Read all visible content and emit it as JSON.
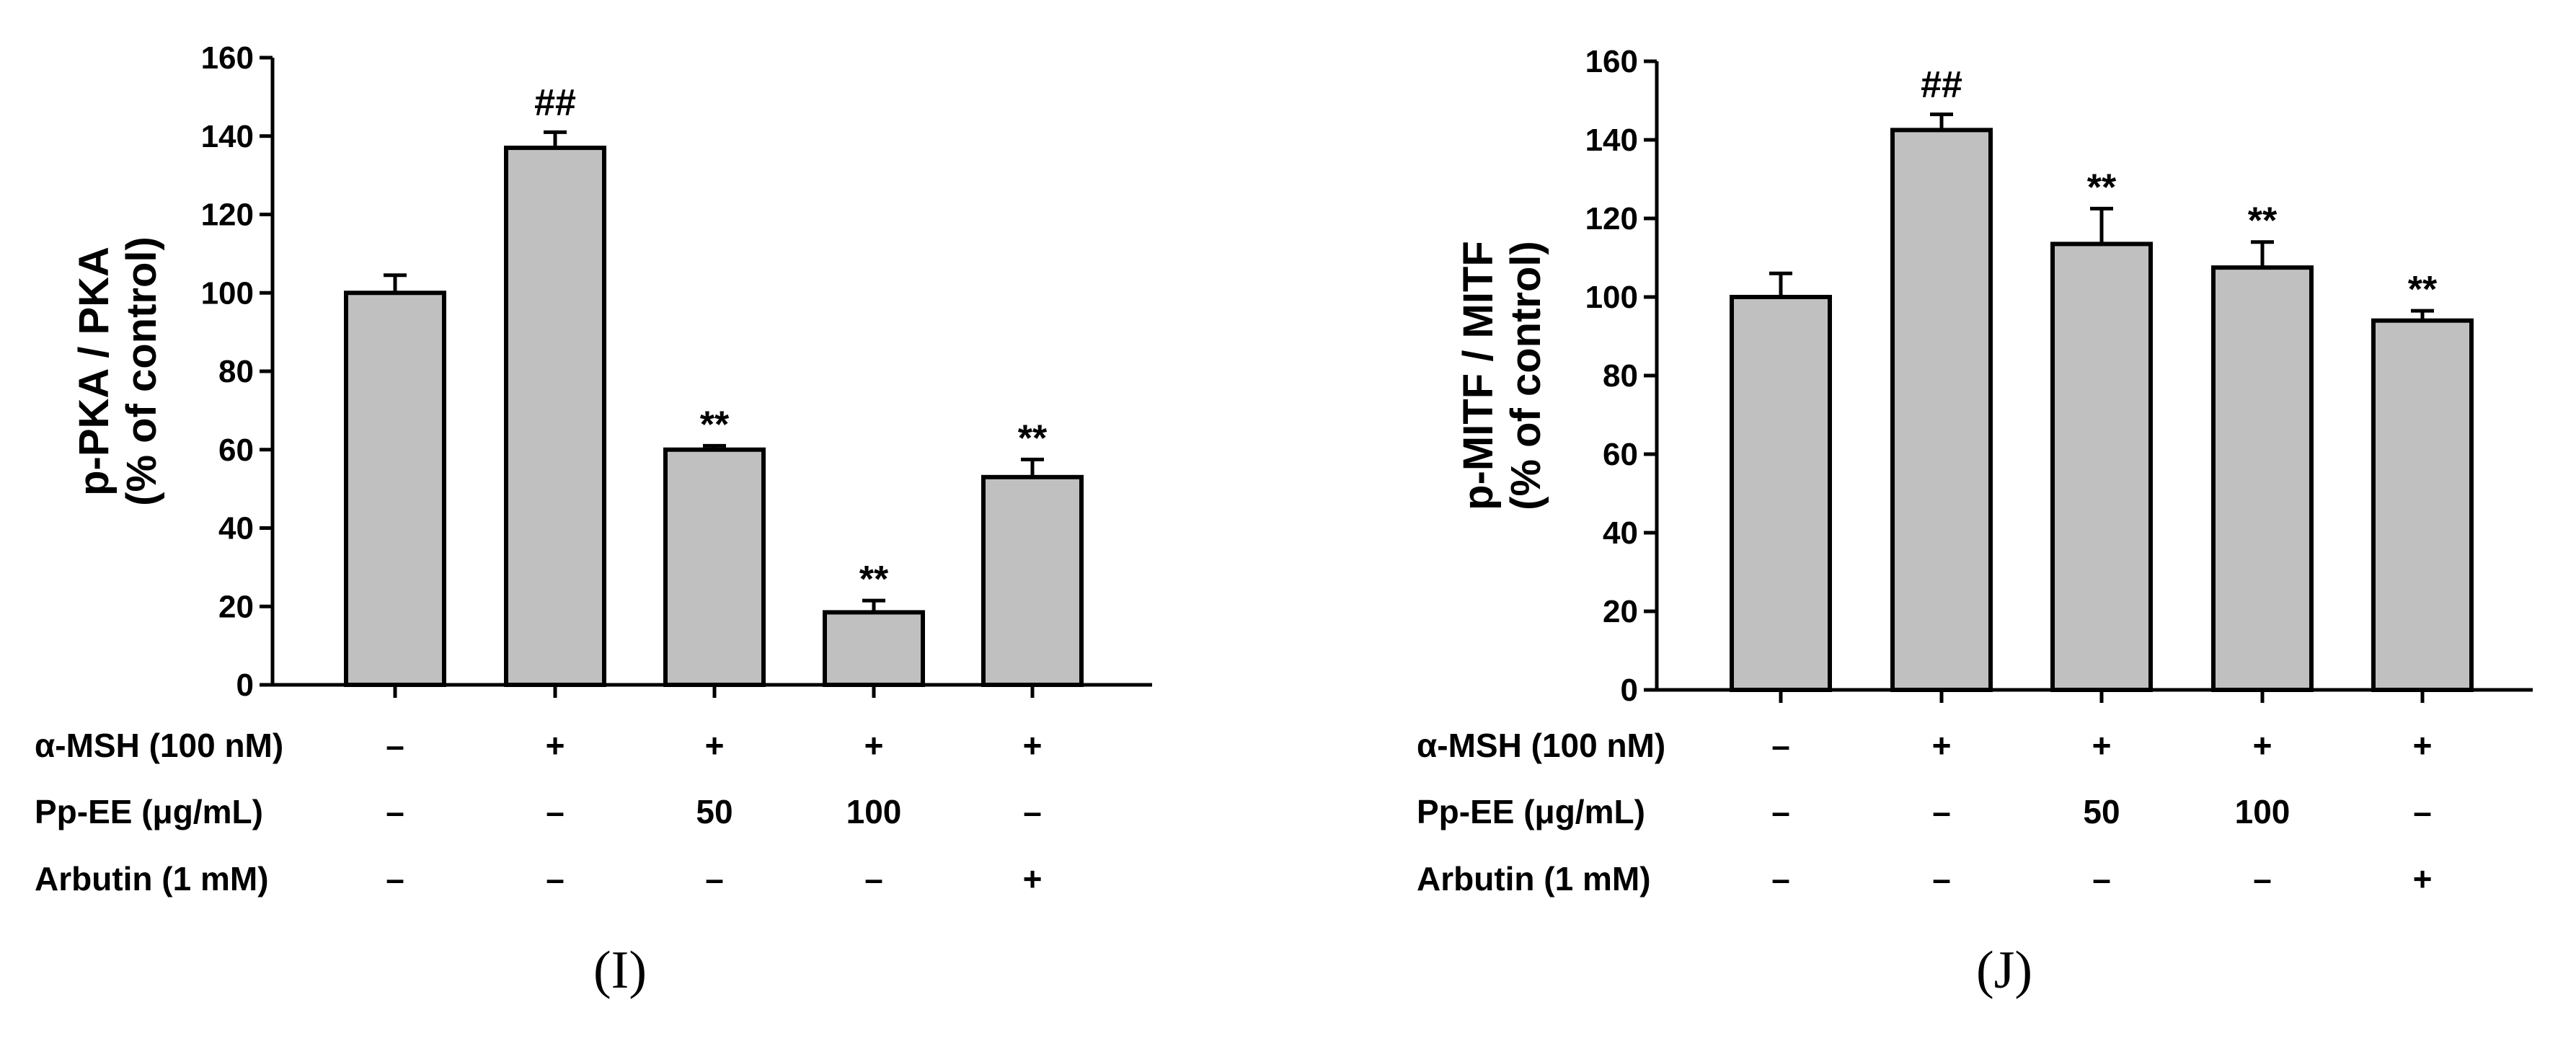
{
  "chart_data": [
    {
      "type": "bar",
      "panel": "(I)",
      "ylabel_line1": "p-PKA / PKA",
      "ylabel_line2": "(% of control)",
      "ylim": [
        0,
        160
      ],
      "yticks": [
        0,
        20,
        40,
        60,
        80,
        100,
        120,
        140,
        160
      ],
      "values": [
        100,
        137,
        60,
        18.5,
        53
      ],
      "errors": [
        4.5,
        4,
        1,
        3,
        4.5
      ],
      "significance": [
        "",
        "##",
        "**",
        "**",
        "**"
      ],
      "conditions": [
        {
          "label": "α-MSH (100 nM)",
          "cells": [
            "–",
            "+",
            "+",
            "+",
            "+"
          ]
        },
        {
          "label": "Pp-EE (μg/mL)",
          "cells": [
            "–",
            "–",
            "50",
            "100",
            "–"
          ]
        },
        {
          "label": "Arbutin (1 mM)",
          "cells": [
            "–",
            "–",
            "–",
            "–",
            "+"
          ]
        }
      ]
    },
    {
      "type": "bar",
      "panel": "(J)",
      "ylabel_line1": "p-MITF / MITF",
      "ylabel_line2": "(% of control)",
      "ylim": [
        0,
        160
      ],
      "yticks": [
        0,
        20,
        40,
        60,
        80,
        100,
        120,
        140,
        160
      ],
      "values": [
        100,
        142.5,
        113.5,
        107.5,
        94
      ],
      "errors": [
        6,
        4,
        9,
        6.5,
        2.5
      ],
      "significance": [
        "",
        "##",
        "**",
        "**",
        "**"
      ],
      "conditions": [
        {
          "label": "α-MSH (100 nM)",
          "cells": [
            "–",
            "+",
            "+",
            "+",
            "+"
          ]
        },
        {
          "label": "Pp-EE (μg/mL)",
          "cells": [
            "–",
            "–",
            "50",
            "100",
            "–"
          ]
        },
        {
          "label": "Arbutin (1 mM)",
          "cells": [
            "–",
            "–",
            "–",
            "–",
            "+"
          ]
        }
      ]
    }
  ],
  "colors": {
    "bar_fill": "#c0c0c0",
    "stroke": "#000000"
  }
}
